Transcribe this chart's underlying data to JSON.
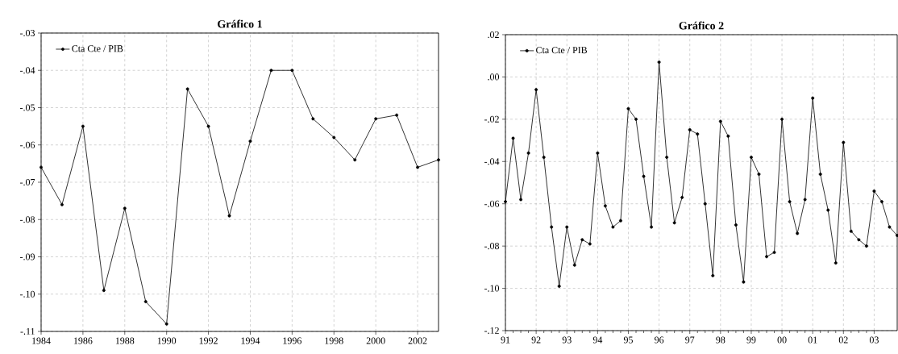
{
  "chart_data": [
    {
      "type": "line",
      "title": "**Gráfico 1**",
      "x": [
        1984,
        1985,
        1986,
        1987,
        1988,
        1989,
        1990,
        1991,
        1992,
        1993,
        1994,
        1995,
        1996,
        1997,
        1998,
        1999,
        2000,
        2001,
        2002,
        2003
      ],
      "series": [
        {
          "name": "Cta Cte / PIB",
          "color": "#000000",
          "values": [
            -0.066,
            -0.076,
            -0.055,
            -0.099,
            -0.077,
            -0.102,
            -0.108,
            -0.045,
            -0.055,
            -0.079,
            -0.059,
            -0.04,
            -0.04,
            -0.053,
            -0.058,
            -0.064,
            -0.053,
            -0.052,
            -0.066,
            -0.064
          ]
        }
      ],
      "xlim": [
        1984,
        2003
      ],
      "xticks": [
        1984,
        1986,
        1988,
        1990,
        1992,
        1994,
        1996,
        1998,
        2000,
        2002
      ],
      "ylim": [
        -0.11,
        -0.03
      ],
      "yticks": [
        {
          "value": -0.11,
          "label": "-.11"
        },
        {
          "value": -0.1,
          "label": "-.10"
        },
        {
          "value": -0.09,
          "label": "-.09"
        },
        {
          "value": -0.08,
          "label": "-.08"
        },
        {
          "value": -0.07,
          "label": "-.07"
        },
        {
          "value": -0.06,
          "label": "-.06"
        },
        {
          "value": -0.05,
          "label": "-.05"
        },
        {
          "value": -0.04,
          "label": "-.04"
        },
        {
          "value": -0.03,
          "label": "-.03"
        }
      ],
      "grid": true,
      "legend": "top left",
      "marker": "circle",
      "line_style": "solid"
    },
    {
      "type": "line",
      "title": "**Gráfico 2**",
      "x": [
        1991,
        1991.25,
        1991.5,
        1991.75,
        1992,
        1992.25,
        1992.5,
        1992.75,
        1993,
        1993.25,
        1993.5,
        1993.75,
        1994,
        1994.25,
        1994.5,
        1994.75,
        1995,
        1995.25,
        1995.5,
        1995.75,
        1996,
        1996.25,
        1996.5,
        1996.75,
        1997,
        1997.25,
        1997.5,
        1997.75,
        1998,
        1998.25,
        1998.5,
        1998.75,
        1999,
        1999.25,
        1999.5,
        1999.75,
        2000,
        2000.25,
        2000.5,
        2000.75,
        2001,
        2001.25,
        2001.5,
        2001.75,
        2002,
        2002.25,
        2002.5,
        2002.75,
        2003,
        2003.25,
        2003.5,
        2003.75
      ],
      "series": [
        {
          "name": "Cta Cte / PIB",
          "color": "#000000",
          "values": [
            -0.059,
            -0.029,
            -0.058,
            -0.036,
            -0.006,
            -0.038,
            -0.071,
            -0.099,
            -0.071,
            -0.089,
            -0.077,
            -0.079,
            -0.036,
            -0.061,
            -0.071,
            -0.068,
            -0.015,
            -0.02,
            -0.047,
            -0.071,
            0.007,
            -0.038,
            -0.069,
            -0.057,
            -0.025,
            -0.027,
            -0.06,
            -0.094,
            -0.021,
            -0.028,
            -0.07,
            -0.097,
            -0.038,
            -0.046,
            -0.085,
            -0.083,
            -0.02,
            -0.059,
            -0.074,
            -0.058,
            -0.01,
            -0.046,
            -0.063,
            -0.088,
            -0.031,
            -0.073,
            -0.077,
            -0.08,
            -0.054,
            -0.059,
            -0.071,
            -0.075
          ]
        }
      ],
      "xlim": [
        1991,
        2003.75
      ],
      "xticks": [
        {
          "value": 1991,
          "label": "91"
        },
        {
          "value": 1992,
          "label": "92"
        },
        {
          "value": 1993,
          "label": "93"
        },
        {
          "value": 1994,
          "label": "94"
        },
        {
          "value": 1995,
          "label": "95"
        },
        {
          "value": 1996,
          "label": "96"
        },
        {
          "value": 1997,
          "label": "97"
        },
        {
          "value": 1998,
          "label": "98"
        },
        {
          "value": 1999,
          "label": "99"
        },
        {
          "value": 2000,
          "label": "00"
        },
        {
          "value": 2001,
          "label": "01"
        },
        {
          "value": 2002,
          "label": "02"
        },
        {
          "value": 2003,
          "label": "03"
        }
      ],
      "ylim": [
        -0.12,
        0.02
      ],
      "yticks": [
        {
          "value": -0.12,
          "label": "-.12"
        },
        {
          "value": -0.1,
          "label": "-.10"
        },
        {
          "value": -0.08,
          "label": "-.08"
        },
        {
          "value": -0.06,
          "label": "-.06"
        },
        {
          "value": -0.04,
          "label": "-.04"
        },
        {
          "value": -0.02,
          "label": "-.02"
        },
        {
          "value": 0.0,
          "label": ".00"
        },
        {
          "value": 0.02,
          "label": ".02"
        }
      ],
      "grid": true,
      "legend": "top left",
      "marker": "circle",
      "line_style": "solid"
    }
  ]
}
